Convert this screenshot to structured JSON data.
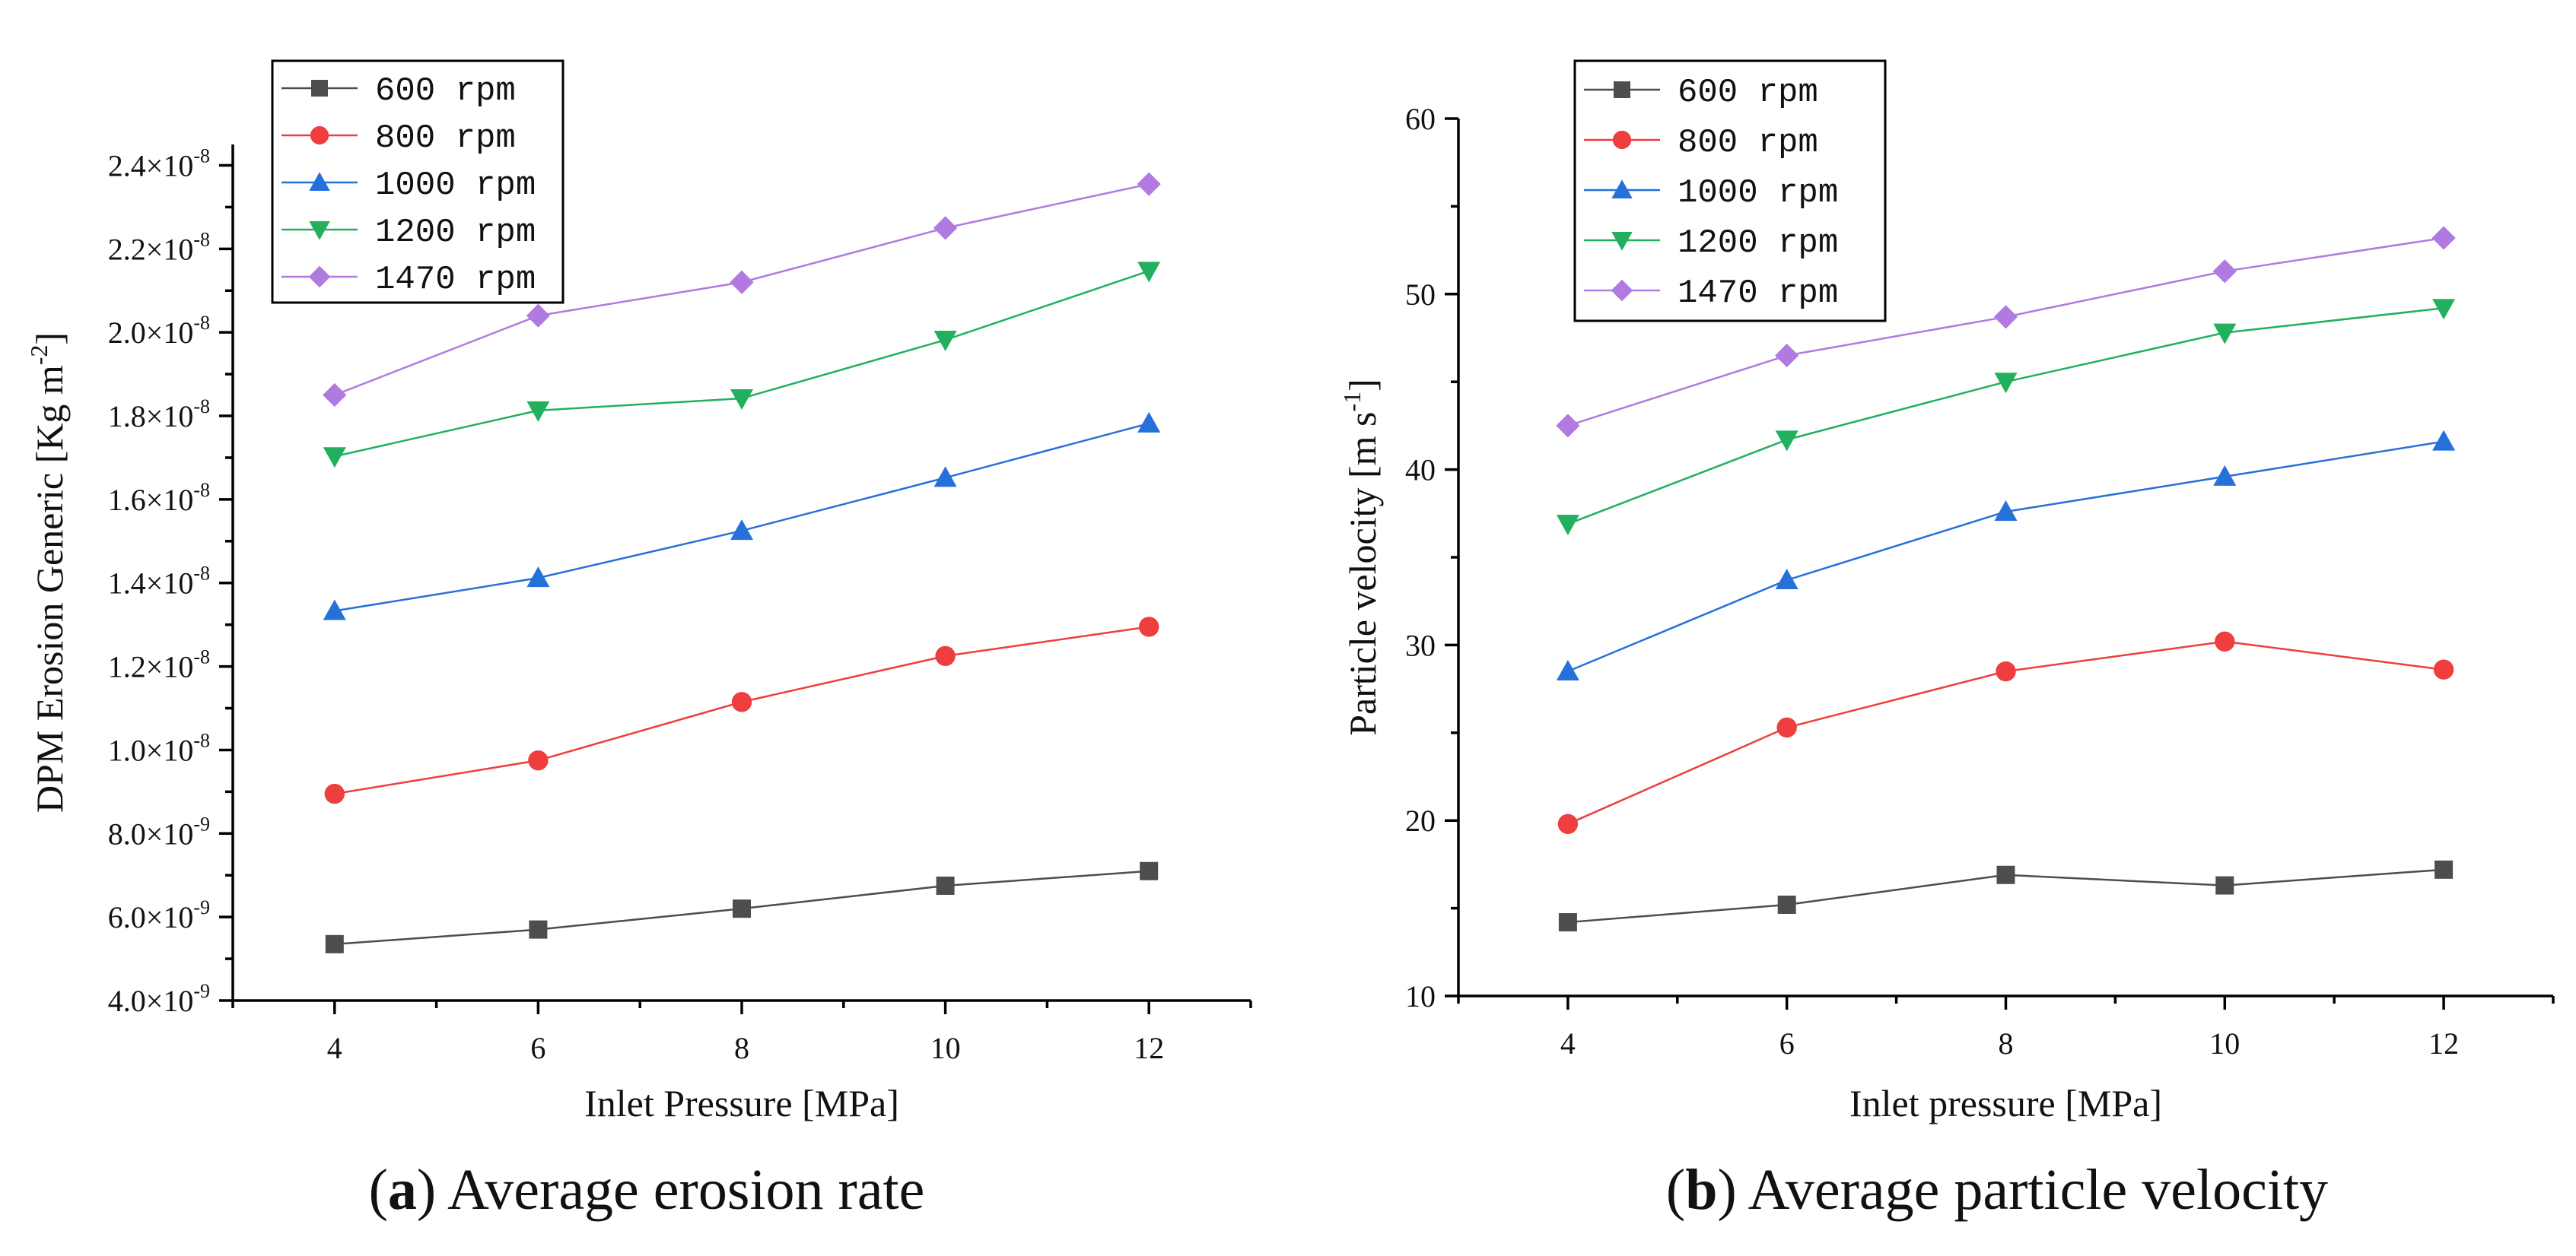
{
  "chart_data": [
    {
      "type": "line",
      "panel_label": "a",
      "caption": "Average erosion rate",
      "xlabel": "Inlet Pressure [MPa]",
      "ylabel": "DPM Erosion Generic [Kg m",
      "ylabel_sup": "-2",
      "ylabel_end": "]",
      "x": [
        4,
        6,
        8,
        10,
        12
      ],
      "xlim": [
        3,
        13
      ],
      "xticks": [
        4,
        6,
        8,
        10,
        12
      ],
      "ylim": [
        4e-09,
        2.45e-08
      ],
      "yticks": [
        {
          "value": 4e-09,
          "mant": "4.0",
          "exp": "-9"
        },
        {
          "value": 6e-09,
          "mant": "6.0",
          "exp": "-9"
        },
        {
          "value": 8e-09,
          "mant": "8.0",
          "exp": "-9"
        },
        {
          "value": 1e-08,
          "mant": "1.0",
          "exp": "-8"
        },
        {
          "value": 1.2e-08,
          "mant": "1.2",
          "exp": "-8"
        },
        {
          "value": 1.4e-08,
          "mant": "1.4",
          "exp": "-8"
        },
        {
          "value": 1.6e-08,
          "mant": "1.6",
          "exp": "-8"
        },
        {
          "value": 1.8e-08,
          "mant": "1.8",
          "exp": "-8"
        },
        {
          "value": 2e-08,
          "mant": "2.0",
          "exp": "-8"
        },
        {
          "value": 2.2e-08,
          "mant": "2.2",
          "exp": "-8"
        },
        {
          "value": 2.4e-08,
          "mant": "2.4",
          "exp": "-8"
        }
      ],
      "tick_times": "×10",
      "legend_position": "top-left",
      "series": [
        {
          "name": "600  rpm",
          "marker": "square",
          "color": "#4d4d4d",
          "values": [
            5.35e-09,
            5.7e-09,
            6.2e-09,
            6.75e-09,
            7.1e-09
          ]
        },
        {
          "name": "800  rpm",
          "marker": "circle",
          "color": "#ee3e3e",
          "values": [
            8.95e-09,
            9.75e-09,
            1.115e-08,
            1.225e-08,
            1.295e-08
          ]
        },
        {
          "name": "1000  rpm",
          "marker": "triangle-up",
          "color": "#2670d9",
          "values": [
            1.333e-08,
            1.412e-08,
            1.525e-08,
            1.652e-08,
            1.782e-08
          ]
        },
        {
          "name": "1200  rpm",
          "marker": "triangle-down",
          "color": "#22b05f",
          "values": [
            1.703e-08,
            1.813e-08,
            1.842e-08,
            1.982e-08,
            2.147e-08
          ]
        },
        {
          "name": "1470  rpm",
          "marker": "diamond",
          "color": "#b07ae0",
          "values": [
            1.85e-08,
            2.04e-08,
            2.12e-08,
            2.25e-08,
            2.355e-08
          ]
        }
      ]
    },
    {
      "type": "line",
      "panel_label": "b",
      "caption": "Average particle velocity",
      "xlabel": "Inlet pressure [MPa]",
      "ylabel": "Particle  velocity [m s",
      "ylabel_sup": "-1",
      "ylabel_end": "]",
      "x": [
        4,
        6,
        8,
        10,
        12
      ],
      "xlim": [
        3,
        13
      ],
      "xticks": [
        4,
        6,
        8,
        10,
        12
      ],
      "ylim": [
        10,
        60
      ],
      "yticks": [
        {
          "value": 10,
          "label": "10"
        },
        {
          "value": 20,
          "label": "20"
        },
        {
          "value": 30,
          "label": "30"
        },
        {
          "value": 40,
          "label": "40"
        },
        {
          "value": 50,
          "label": "50"
        },
        {
          "value": 60,
          "label": "60"
        }
      ],
      "legend_position": "top-left",
      "series": [
        {
          "name": "600  rpm",
          "marker": "square",
          "color": "#4d4d4d",
          "values": [
            14.2,
            15.2,
            16.9,
            16.3,
            17.2
          ]
        },
        {
          "name": "800  rpm",
          "marker": "circle",
          "color": "#ee3e3e",
          "values": [
            19.8,
            25.3,
            28.5,
            30.2,
            28.6
          ]
        },
        {
          "name": "1000  rpm",
          "marker": "triangle-up",
          "color": "#2670d9",
          "values": [
            28.5,
            33.7,
            37.6,
            39.6,
            41.6
          ]
        },
        {
          "name": "1200  rpm",
          "marker": "triangle-down",
          "color": "#22b05f",
          "values": [
            36.9,
            41.7,
            45.0,
            47.8,
            49.2
          ]
        },
        {
          "name": "1470  rpm",
          "marker": "diamond",
          "color": "#b07ae0",
          "values": [
            42.5,
            46.5,
            48.7,
            51.3,
            53.2
          ]
        }
      ]
    }
  ]
}
